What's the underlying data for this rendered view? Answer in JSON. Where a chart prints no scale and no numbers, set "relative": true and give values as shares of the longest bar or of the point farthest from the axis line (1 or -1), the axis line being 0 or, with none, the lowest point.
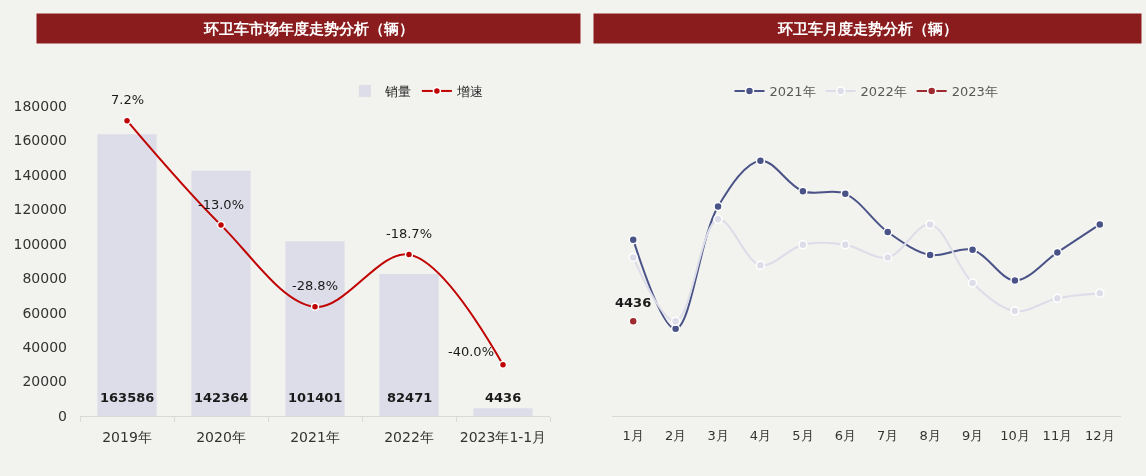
{
  "chart_data": [
    {
      "type": "bar",
      "title": "环卫车市场年度走势分析（辆）",
      "categories": [
        "2019年",
        "2020年",
        "2021年",
        "2022年",
        "2023年1-1月"
      ],
      "series": [
        {
          "name": "销量",
          "color": "#dcdde8",
          "values": [
            163586,
            142364,
            101401,
            82471,
            4436
          ],
          "value_labels": [
            "163586",
            "142364",
            "101401",
            "82471",
            "4436"
          ]
        },
        {
          "name": "增速",
          "type": "line",
          "axis": "y2",
          "color": "#c00000",
          "values": [
            7.2,
            -13.0,
            -28.8,
            -18.7,
            -40.0
          ],
          "value_labels": [
            "7.2%",
            "-13.0%",
            "-28.8%",
            "-18.7%",
            "-40.0%"
          ]
        }
      ],
      "ylim": [
        0,
        180000
      ],
      "yticks": [
        0,
        20000,
        40000,
        60000,
        80000,
        100000,
        120000,
        140000,
        160000,
        180000
      ],
      "legend": "top right",
      "marker": "circle"
    },
    {
      "type": "line",
      "title": "环卫车月度走势分析（辆）",
      "categories": [
        "1月",
        "2月",
        "3月",
        "4月",
        "5月",
        "6月",
        "7月",
        "8月",
        "9月",
        "10月",
        "11月",
        "12月"
      ],
      "relative": true,
      "series": [
        {
          "name": "2021年",
          "color": "#4a5387",
          "values": [
            0.69,
            0.34,
            0.82,
            1.0,
            0.88,
            0.87,
            0.72,
            0.63,
            0.65,
            0.53,
            0.64,
            0.75
          ]
        },
        {
          "name": "2022年",
          "color": "#dcdde9",
          "values": [
            0.62,
            0.37,
            0.77,
            0.59,
            0.67,
            0.67,
            0.62,
            0.75,
            0.52,
            0.41,
            0.46,
            0.48
          ]
        },
        {
          "name": "2023年",
          "color": "#9e2b2f",
          "values": [
            0.37,
            null,
            null,
            null,
            null,
            null,
            null,
            null,
            null,
            null,
            null,
            null
          ]
        }
      ],
      "annotations": [
        {
          "text": "4436",
          "x": "1月",
          "y": 0.37
        }
      ],
      "legend": "top",
      "marker": "circle"
    }
  ]
}
